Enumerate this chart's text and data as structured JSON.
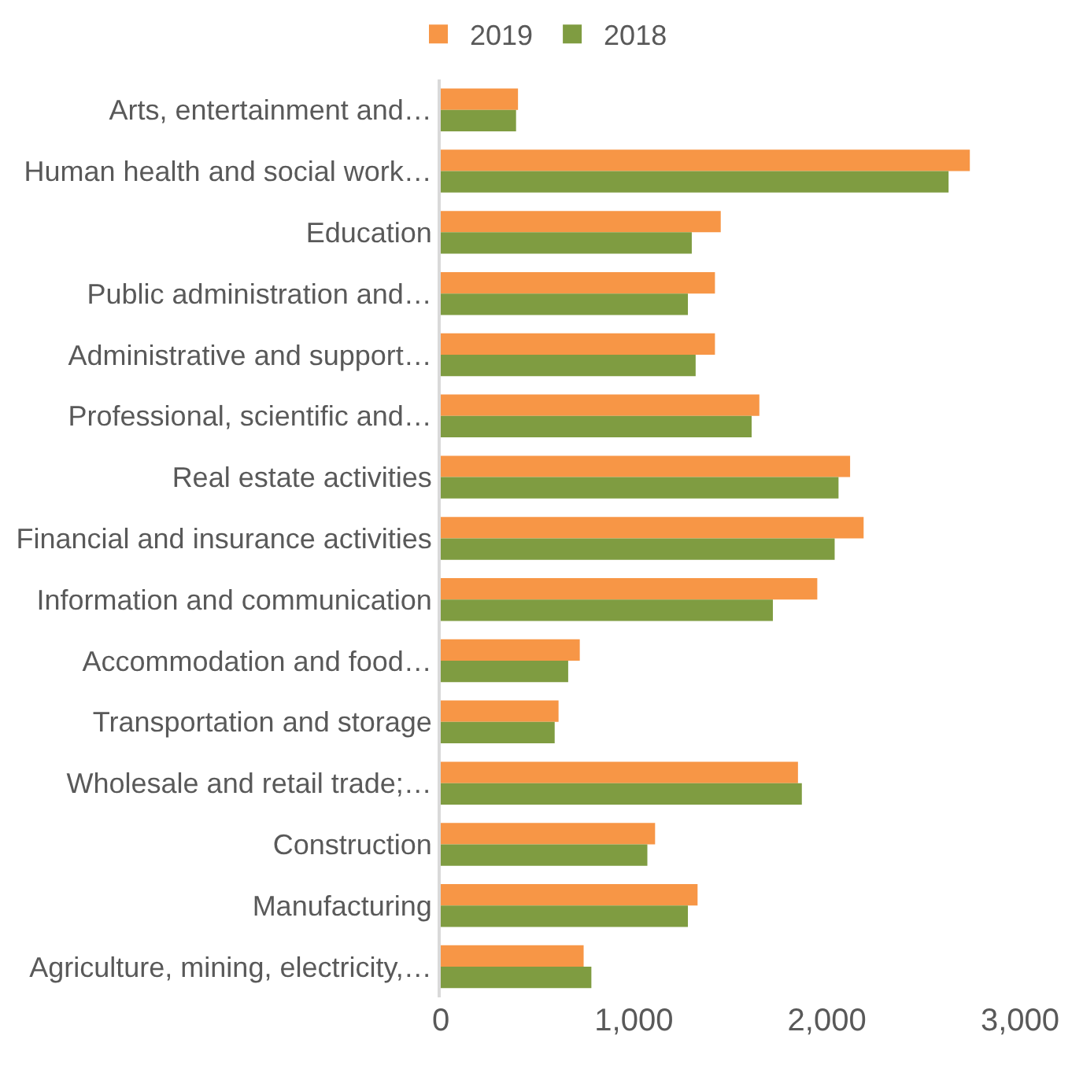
{
  "chart_data": {
    "type": "bar",
    "orientation": "horizontal",
    "categories": [
      "Arts, entertainment and…",
      "Human health and social work…",
      "Education",
      "Public administration and…",
      "Administrative and support…",
      "Professional, scientific and…",
      "Real estate activities",
      "Financial and insurance activities",
      "Information and communication",
      "Accommodation and food…",
      "Transportation and storage",
      "Wholesale and retail trade;…",
      "Construction",
      "Manufacturing",
      "Agriculture, mining, electricity,…"
    ],
    "series": [
      {
        "name": "2019",
        "color": "#f79646",
        "values": [
          400,
          2740,
          1450,
          1420,
          1420,
          1650,
          2120,
          2190,
          1950,
          720,
          610,
          1850,
          1110,
          1330,
          740
        ]
      },
      {
        "name": "2018",
        "color": "#7f9c41",
        "values": [
          390,
          2630,
          1300,
          1280,
          1320,
          1610,
          2060,
          2040,
          1720,
          660,
          590,
          1870,
          1070,
          1280,
          780
        ]
      }
    ],
    "xlim": [
      0,
      3000
    ],
    "xticks": [
      {
        "value": 0,
        "label": "0"
      },
      {
        "value": 1000,
        "label": "1,000"
      },
      {
        "value": 2000,
        "label": "2,000"
      },
      {
        "value": 3000,
        "label": "3,000"
      }
    ],
    "legend": "top"
  }
}
